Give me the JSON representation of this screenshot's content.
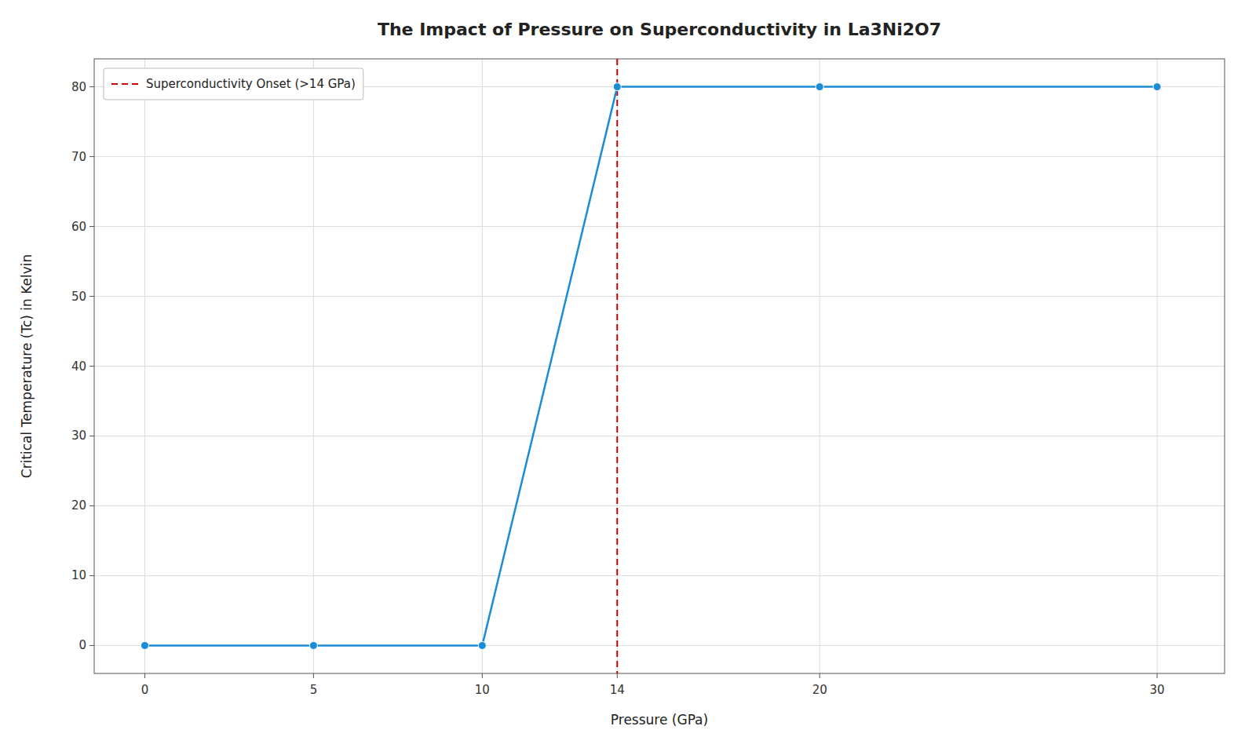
{
  "chart_data": {
    "type": "line",
    "title": "The Impact of Pressure on Superconductivity in La3Ni2O7",
    "x_label": "Pressure (GPa)",
    "y_label": "Critical Temperature (Tc) in Kelvin",
    "x": [
      0,
      5,
      10,
      14,
      20,
      30
    ],
    "values": [
      0,
      0,
      0,
      80,
      80,
      80
    ],
    "color": "#1a8cd8",
    "marker": "circle",
    "annotations": [
      {
        "type": "vline",
        "x": 14,
        "label": "Superconductivity Onset (>14 GPa)",
        "color": "#cc0000",
        "line_style": "dashed"
      }
    ],
    "xlim": [
      -1.5,
      32
    ],
    "ylim": [
      -4,
      84
    ],
    "xticks": [
      0,
      5,
      10,
      14,
      20,
      30
    ],
    "yticks": [
      0,
      10,
      20,
      30,
      40,
      50,
      60,
      70,
      80
    ],
    "grid": true,
    "legend": "upper-left"
  }
}
